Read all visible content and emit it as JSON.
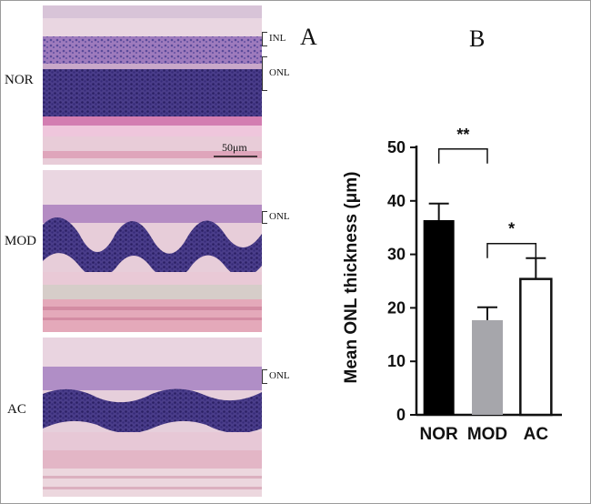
{
  "panels": {
    "a_label": "A",
    "b_label": "B"
  },
  "micrographs": [
    {
      "row_label": "NOR",
      "layers": [
        "INL",
        "ONL"
      ],
      "scale_bar": "50μm"
    },
    {
      "row_label": "MOD",
      "layers": [
        "ONL"
      ]
    },
    {
      "row_label": "AC",
      "layers": [
        "ONL"
      ]
    }
  ],
  "chart_data": {
    "type": "bar",
    "categories": [
      "NOR",
      "MOD",
      "AC"
    ],
    "values": [
      36.4,
      17.7,
      25.4
    ],
    "errors": [
      3.1,
      2.4,
      3.9
    ],
    "bar_colors": [
      "#000000",
      "#a6a6ab",
      "#ffffff"
    ],
    "ylabel": "Mean ONL thickness (μm)",
    "ylim": [
      0,
      50
    ],
    "yticks": [
      0,
      10,
      20,
      30,
      40,
      50
    ],
    "significance": [
      {
        "between": [
          "NOR",
          "MOD"
        ],
        "label": "**"
      },
      {
        "between": [
          "MOD",
          "AC"
        ],
        "label": "*"
      }
    ],
    "grid": false
  }
}
